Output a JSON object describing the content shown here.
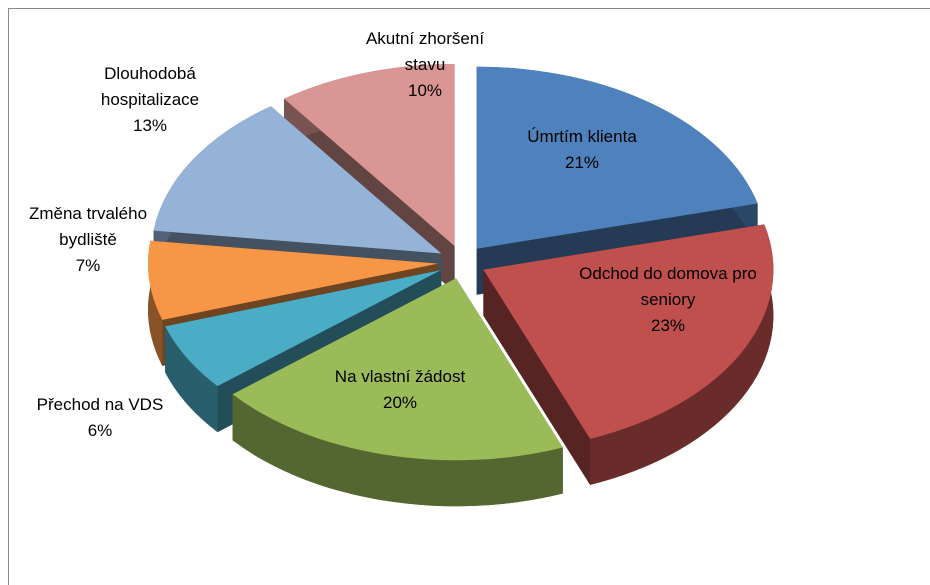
{
  "chart_data": {
    "type": "pie",
    "categories": [
      "Úmrtím klienta",
      "Odchod do domova pro seniory",
      "Na vlastní žádost",
      "Přechod na VDS",
      "Změna trvalého bydliště",
      "Dlouhodobá hospitalizace",
      "Akutní zhoršení stavu"
    ],
    "values": [
      21,
      23,
      20,
      6,
      7,
      13,
      10
    ],
    "value_labels": [
      "21%",
      "23%",
      "20%",
      "6%",
      "7%",
      "13%",
      "10%"
    ],
    "colors": [
      "#4f81bd",
      "#c0504d",
      "#9bbb59",
      "#4bacc6",
      "#f79646",
      "#95b3d7",
      "#d99694"
    ]
  }
}
